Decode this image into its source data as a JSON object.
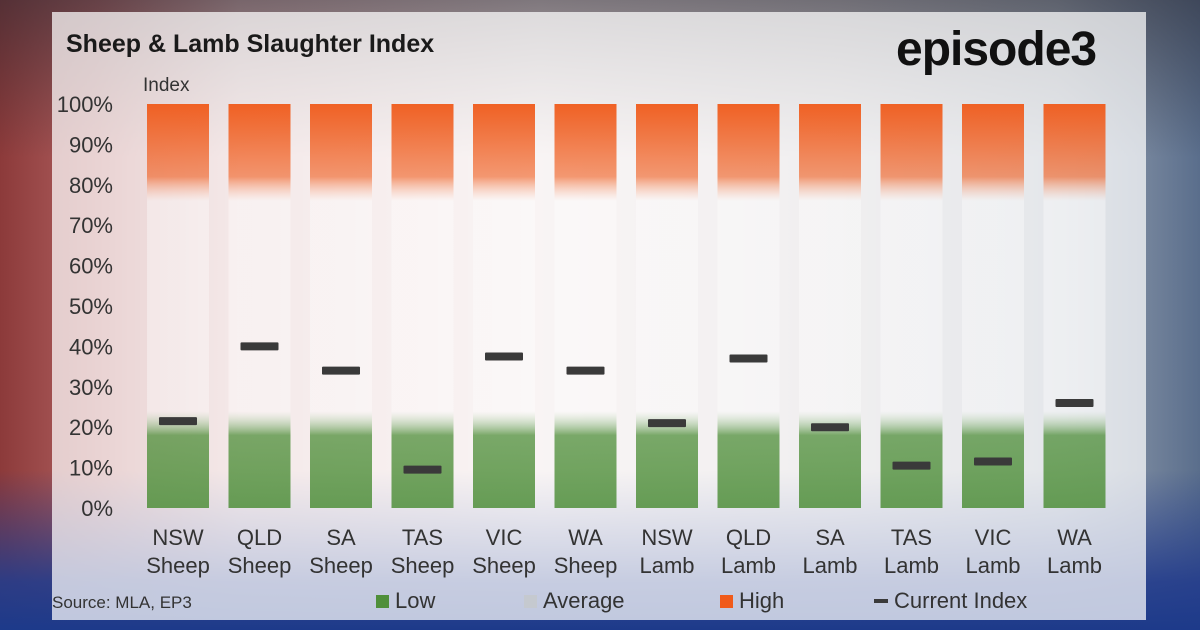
{
  "header": {
    "title": "Sheep & Lamb Slaughter Index",
    "brand": "episode3"
  },
  "footer": {
    "source": "Source: MLA, EP3"
  },
  "legend": [
    {
      "label": "Low",
      "color": "#4f8f3a",
      "icon": "square"
    },
    {
      "label": "Average",
      "color": "#c5c9cf",
      "icon": "square"
    },
    {
      "label": "High",
      "color": "#f05a1a",
      "icon": "square"
    },
    {
      "label": "Current Index",
      "color": "#3a3a3a",
      "icon": "dash"
    }
  ],
  "colors": {
    "low": "#4f8f3a",
    "average": "#ffffff",
    "high": "#f05a1a",
    "marker": "#3a3a3a",
    "text": "#333333"
  },
  "chart_data": {
    "type": "bar",
    "ylabel": "Index",
    "ylim": [
      0,
      100
    ],
    "yticks": [
      "0%",
      "10%",
      "20%",
      "30%",
      "40%",
      "50%",
      "60%",
      "70%",
      "80%",
      "90%",
      "100%"
    ],
    "categories": [
      [
        "NSW",
        "Sheep"
      ],
      [
        "QLD",
        "Sheep"
      ],
      [
        "SA",
        "Sheep"
      ],
      [
        "TAS",
        "Sheep"
      ],
      [
        "VIC",
        "Sheep"
      ],
      [
        "WA",
        "Sheep"
      ],
      [
        "NSW",
        "Lamb"
      ],
      [
        "QLD",
        "Lamb"
      ],
      [
        "SA",
        "Lamb"
      ],
      [
        "TAS",
        "Lamb"
      ],
      [
        "VIC",
        "Lamb"
      ],
      [
        "WA",
        "Lamb"
      ]
    ],
    "bands": {
      "low_max": 20,
      "high_min": 80
    },
    "series": [
      {
        "name": "Current Index",
        "values": [
          21.5,
          40,
          34,
          9.5,
          37.5,
          34,
          21,
          37,
          20,
          10.5,
          11.5,
          26
        ]
      }
    ],
    "grid": false,
    "legend_position": "bottom"
  }
}
